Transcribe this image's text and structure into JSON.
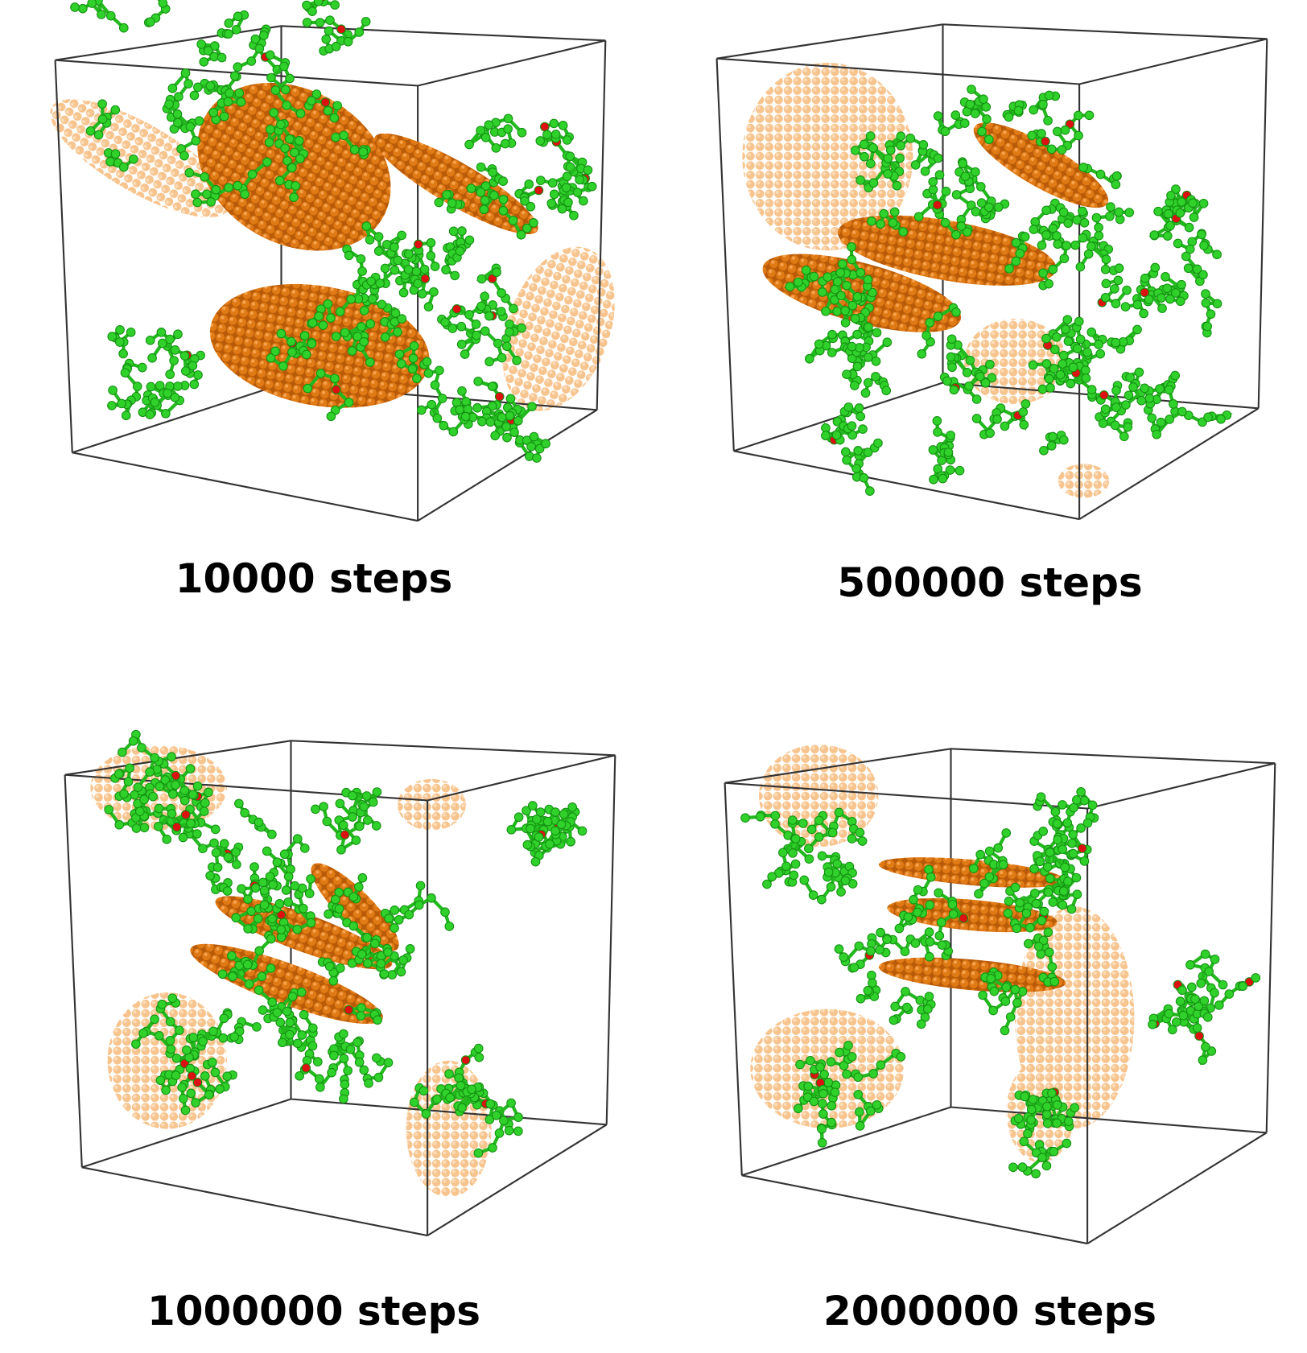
{
  "panels": [
    {
      "caption": "10000 steps"
    },
    {
      "caption": "500000 steps"
    },
    {
      "caption": "1000000 steps"
    },
    {
      "caption": "2000000 steps"
    }
  ]
}
